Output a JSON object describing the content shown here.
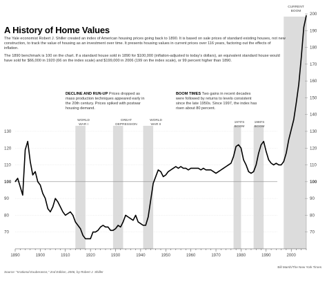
{
  "header": {
    "title": "A History of Home Values",
    "intro_p1": "The Yale economist Robert J. Shiller created an index of American housing prices going back to 1890. It is based on sale prices of standard existing houses, not new construction, to track the value of housing as an investment over time. It presents housing values in current prices over 116 years, factoring out the effects of inflation.",
    "intro_p2": "The 1890 benchmark is 100 on the chart. If a standard house sold in 1890 for $100,000 (inflation-adjusted to today's dollars), an equivalent standard house would have sold for $66,000 in 1920 (66 on the index scale) and $199,000 in 2006 (199 on the index scale), or 99 percent higher than 1890."
  },
  "annotations": {
    "decline_head": "DECLINE AND RUN-UP",
    "decline_body": "Prices dropped as mass production techniques appeared early in the 20th century. Prices spiked with postwar housing demand.",
    "boom_head": "BOOM TIMES",
    "boom_body": "Two gains in recent decades were followed by returns to levels consistent since the late 1950s. Since 1997, the index has risen about 80 percent."
  },
  "eras": {
    "ww1": "WORLD WAR I",
    "depression": "GREAT DEPRESSION",
    "ww2": "WORLD WAR II",
    "boom1970": "1970'S BOOM",
    "boom1980": "1980'S BOOM",
    "current": "CURRENT BOOM"
  },
  "footer": {
    "source": "Source: \"Irrational Exuberance,\" 2nd Edition, 2006, by Robert J. Shiller",
    "credit": "Bill Marsh/The New York Times"
  },
  "chart_data": {
    "type": "line",
    "title": "A History of Home Values",
    "xlabel": "",
    "ylabel": "",
    "xlim": [
      1890,
      2006
    ],
    "ylim": [
      60,
      200
    ],
    "grid": true,
    "x_ticks": [
      1890,
      1900,
      1910,
      1920,
      1930,
      1940,
      1950,
      1960,
      1970,
      1980,
      1990,
      2000
    ],
    "y_ticks_left": [
      70,
      80,
      90,
      100,
      110,
      120,
      130
    ],
    "y_ticks_right": [
      70,
      80,
      90,
      100,
      110,
      120,
      130,
      140,
      150,
      160,
      170,
      180,
      190,
      200
    ],
    "baseline": 100,
    "shaded_periods": [
      {
        "label": "WORLD WAR I",
        "start": 1914,
        "end": 1918
      },
      {
        "label": "GREAT DEPRESSION",
        "start": 1929,
        "end": 1933
      },
      {
        "label": "WORLD WAR II",
        "start": 1941,
        "end": 1945
      },
      {
        "label": "1970'S BOOM",
        "start": 1977,
        "end": 1980
      },
      {
        "label": "1980'S BOOM",
        "start": 1985,
        "end": 1989
      },
      {
        "label": "CURRENT BOOM",
        "start": 1997,
        "end": 2006
      }
    ],
    "series": [
      {
        "values": [
          [
            1890,
            100
          ],
          [
            1891,
            102
          ],
          [
            1892,
            97
          ],
          [
            1893,
            92
          ],
          [
            1894,
            119
          ],
          [
            1895,
            124
          ],
          [
            1896,
            112
          ],
          [
            1897,
            104
          ],
          [
            1898,
            106
          ],
          [
            1899,
            100
          ],
          [
            1900,
            98
          ],
          [
            1901,
            93
          ],
          [
            1902,
            90
          ],
          [
            1903,
            84
          ],
          [
            1904,
            82
          ],
          [
            1905,
            85
          ],
          [
            1906,
            90
          ],
          [
            1907,
            88
          ],
          [
            1908,
            85
          ],
          [
            1909,
            82
          ],
          [
            1910,
            80
          ],
          [
            1911,
            81
          ],
          [
            1912,
            82
          ],
          [
            1913,
            80
          ],
          [
            1914,
            76
          ],
          [
            1915,
            74
          ],
          [
            1916,
            72
          ],
          [
            1917,
            68
          ],
          [
            1918,
            66
          ],
          [
            1919,
            66
          ],
          [
            1920,
            66
          ],
          [
            1921,
            70
          ],
          [
            1922,
            70
          ],
          [
            1923,
            71
          ],
          [
            1924,
            73
          ],
          [
            1925,
            74
          ],
          [
            1926,
            73
          ],
          [
            1927,
            73
          ],
          [
            1928,
            71
          ],
          [
            1929,
            71
          ],
          [
            1930,
            72
          ],
          [
            1931,
            74
          ],
          [
            1932,
            73
          ],
          [
            1933,
            76
          ],
          [
            1934,
            80
          ],
          [
            1935,
            79
          ],
          [
            1936,
            78
          ],
          [
            1937,
            77
          ],
          [
            1938,
            80
          ],
          [
            1939,
            76
          ],
          [
            1940,
            75
          ],
          [
            1941,
            74
          ],
          [
            1942,
            74
          ],
          [
            1943,
            79
          ],
          [
            1944,
            89
          ],
          [
            1945,
            99
          ],
          [
            1946,
            103
          ],
          [
            1947,
            107
          ],
          [
            1948,
            106
          ],
          [
            1949,
            103
          ],
          [
            1950,
            104
          ],
          [
            1951,
            106
          ],
          [
            1952,
            107
          ],
          [
            1953,
            108
          ],
          [
            1954,
            109
          ],
          [
            1955,
            108
          ],
          [
            1956,
            109
          ],
          [
            1957,
            108
          ],
          [
            1958,
            108
          ],
          [
            1959,
            107
          ],
          [
            1960,
            108
          ],
          [
            1961,
            108
          ],
          [
            1962,
            108
          ],
          [
            1963,
            108
          ],
          [
            1964,
            107
          ],
          [
            1965,
            108
          ],
          [
            1966,
            107
          ],
          [
            1967,
            107
          ],
          [
            1968,
            107
          ],
          [
            1969,
            106
          ],
          [
            1970,
            105
          ],
          [
            1971,
            106
          ],
          [
            1972,
            107
          ],
          [
            1973,
            108
          ],
          [
            1974,
            109
          ],
          [
            1975,
            110
          ],
          [
            1976,
            111
          ],
          [
            1977,
            115
          ],
          [
            1978,
            121
          ],
          [
            1979,
            122
          ],
          [
            1980,
            120
          ],
          [
            1981,
            113
          ],
          [
            1982,
            110
          ],
          [
            1983,
            106
          ],
          [
            1984,
            105
          ],
          [
            1985,
            106
          ],
          [
            1986,
            110
          ],
          [
            1987,
            117
          ],
          [
            1988,
            122
          ],
          [
            1989,
            124
          ],
          [
            1990,
            118
          ],
          [
            1991,
            113
          ],
          [
            1992,
            111
          ],
          [
            1993,
            110
          ],
          [
            1994,
            111
          ],
          [
            1995,
            110
          ],
          [
            1996,
            110
          ],
          [
            1997,
            112
          ],
          [
            1998,
            117
          ],
          [
            1999,
            125
          ],
          [
            2000,
            131
          ],
          [
            2001,
            137
          ],
          [
            2002,
            147
          ],
          [
            2003,
            158
          ],
          [
            2004,
            174
          ],
          [
            2005,
            192
          ],
          [
            2006,
            199
          ]
        ]
      }
    ]
  }
}
